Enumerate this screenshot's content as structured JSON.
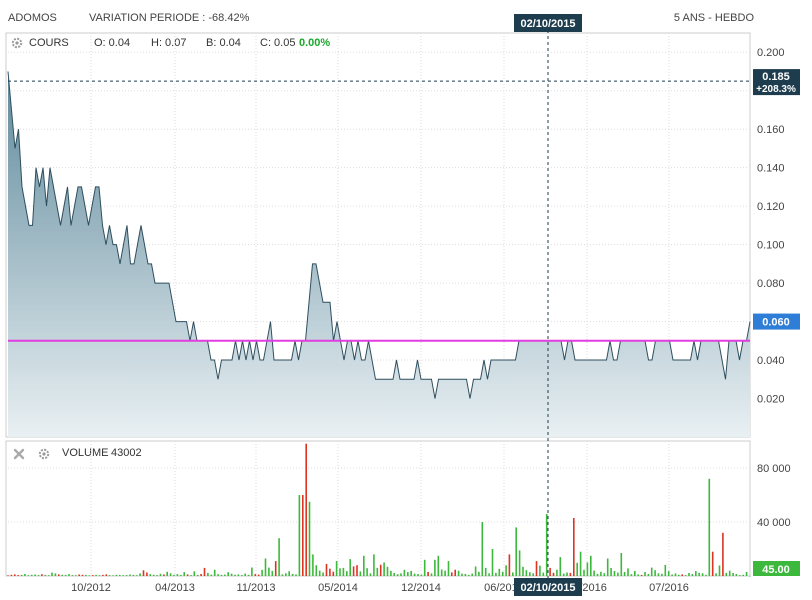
{
  "header": {
    "symbol": "ADOMOS",
    "variation": "VARIATION PERIODE : -68.42%",
    "period": "5 ANS - HEBDO",
    "crosshair_date": "02/10/2015"
  },
  "price_panel": {
    "label": "COURS",
    "open": "O: 0.04",
    "high": "H: 0.07",
    "low": "B: 0.04",
    "close": "C: 0.05",
    "change": "0.00%",
    "crosshair_price": "0.185",
    "crosshair_change": "+208.3%",
    "last_price": "0.060"
  },
  "volume_panel": {
    "label": "VOLUME",
    "value": "43002",
    "last_volume": "45.00"
  },
  "colors": {
    "line": "#2f4f5f",
    "area_top": "#5f8a9c",
    "area_bottom": "#e9f0f3",
    "reference": "#e23de0",
    "up": "#3cb83c",
    "down": "#dd3322",
    "tag_bg": "#1d3d4e",
    "last_tag": "#2e7dd6",
    "volume_tag": "#3cb83c",
    "grid": "#dddddd"
  },
  "chart_data": [
    {
      "type": "area",
      "title": "ADOMOS",
      "ylim": [
        0.0,
        0.21
      ],
      "y_ticks": [
        0.02,
        0.04,
        0.06,
        0.08,
        0.1,
        0.12,
        0.14,
        0.16,
        0.18,
        0.2
      ],
      "y_tick_labels": [
        "0.020",
        "0.040",
        "0.060",
        "0.080",
        "0.100",
        "0.120",
        "0.140",
        "0.160",
        "0.180",
        "0.200"
      ],
      "x_tick_labels": [
        "10/2012",
        "04/2013",
        "11/2013",
        "05/2014",
        "12/2014",
        "06/2015",
        "01/2016",
        "07/2016"
      ],
      "reference_line": 0.05,
      "grid": true,
      "series": [
        {
          "name": "COURS",
          "values": [
            0.19,
            0.17,
            0.15,
            0.16,
            0.13,
            0.12,
            0.11,
            0.11,
            0.14,
            0.13,
            0.14,
            0.12,
            0.14,
            0.13,
            0.12,
            0.11,
            0.12,
            0.13,
            0.11,
            0.12,
            0.13,
            0.13,
            0.12,
            0.11,
            0.12,
            0.13,
            0.13,
            0.11,
            0.1,
            0.11,
            0.1,
            0.1,
            0.09,
            0.1,
            0.11,
            0.09,
            0.09,
            0.1,
            0.11,
            0.1,
            0.09,
            0.09,
            0.08,
            0.08,
            0.08,
            0.08,
            0.08,
            0.07,
            0.06,
            0.06,
            0.06,
            0.06,
            0.05,
            0.06,
            0.05,
            0.05,
            0.05,
            0.05,
            0.04,
            0.04,
            0.03,
            0.04,
            0.04,
            0.04,
            0.04,
            0.05,
            0.04,
            0.05,
            0.04,
            0.05,
            0.04,
            0.05,
            0.04,
            0.04,
            0.05,
            0.06,
            0.04,
            0.04,
            0.04,
            0.04,
            0.04,
            0.04,
            0.05,
            0.04,
            0.05,
            0.05,
            0.07,
            0.09,
            0.09,
            0.08,
            0.07,
            0.07,
            0.07,
            0.05,
            0.06,
            0.05,
            0.04,
            0.05,
            0.05,
            0.04,
            0.05,
            0.04,
            0.04,
            0.05,
            0.04,
            0.03,
            0.03,
            0.03,
            0.03,
            0.03,
            0.03,
            0.04,
            0.03,
            0.03,
            0.03,
            0.03,
            0.03,
            0.04,
            0.03,
            0.03,
            0.03,
            0.03,
            0.02,
            0.03,
            0.03,
            0.03,
            0.03,
            0.03,
            0.03,
            0.03,
            0.03,
            0.03,
            0.02,
            0.03,
            0.03,
            0.03,
            0.04,
            0.03,
            0.04,
            0.04,
            0.04,
            0.04,
            0.04,
            0.04,
            0.04,
            0.04,
            0.05,
            0.05,
            0.05,
            0.05,
            0.05,
            0.05,
            0.05,
            0.05,
            0.05,
            0.05,
            0.05,
            0.05,
            0.05,
            0.04,
            0.05,
            0.05,
            0.04,
            0.04,
            0.04,
            0.04,
            0.04,
            0.04,
            0.04,
            0.04,
            0.04,
            0.04,
            0.05,
            0.04,
            0.04,
            0.05,
            0.05,
            0.05,
            0.05,
            0.05,
            0.05,
            0.05,
            0.05,
            0.04,
            0.04,
            0.05,
            0.05,
            0.05,
            0.05,
            0.05,
            0.04,
            0.04,
            0.04,
            0.04,
            0.04,
            0.04,
            0.05,
            0.04,
            0.05,
            0.05,
            0.05,
            0.05,
            0.05,
            0.05,
            0.04,
            0.03,
            0.05,
            0.05,
            0.05,
            0.04,
            0.05,
            0.05,
            0.06
          ]
        }
      ]
    },
    {
      "type": "bar",
      "title": "VOLUME",
      "ylim": [
        0,
        100000
      ],
      "y_ticks": [
        40000,
        80000
      ],
      "y_tick_labels": [
        "40 000",
        "80 000"
      ],
      "series": [
        {
          "name": "VOLUME",
          "values": [
            500,
            900,
            1200,
            700,
            800,
            1500,
            600,
            900,
            1100,
            700,
            1300,
            800,
            600,
            2500,
            1900,
            1200,
            900,
            800,
            1400,
            700,
            600,
            1100,
            900,
            800,
            500,
            700,
            900,
            600,
            800,
            1200,
            700,
            500,
            900,
            800,
            600,
            700,
            1100,
            800,
            600,
            1900,
            4200,
            2600,
            1400,
            900,
            700,
            1600,
            1100,
            3100,
            2000,
            900,
            1400,
            800,
            2900,
            1200,
            700,
            3400,
            800,
            1500,
            6000,
            2300,
            1000,
            4700,
            1300,
            800,
            1000,
            2800,
            1700,
            900,
            1200,
            700,
            1800,
            900,
            6300,
            1400,
            1000,
            4500,
            13000,
            6200,
            3800,
            11000,
            28000,
            1200,
            2000,
            3500,
            1500,
            1200,
            60000,
            60000,
            98000,
            55000,
            16000,
            8000,
            4000,
            2600,
            9000,
            5400,
            3200,
            11000,
            5700,
            6000,
            3600,
            12500,
            7100,
            8000,
            3400,
            15000,
            5800,
            1900,
            16000,
            6000,
            8400,
            10000,
            6800,
            3800,
            2200,
            1300,
            1900,
            4600,
            2900,
            3800,
            1800,
            1500,
            1000,
            12000,
            3000,
            1900,
            12000,
            15000,
            4800,
            3900,
            11000,
            2700,
            4700,
            3900,
            1800,
            1500,
            800,
            1800,
            7000,
            3100,
            40000,
            6000,
            2000,
            20000,
            2400,
            5300,
            3200,
            7900,
            16000,
            2700,
            36000,
            19000,
            6800,
            4400,
            2800,
            2000,
            11000,
            7600,
            2500,
            46000,
            6000,
            2400,
            4600,
            14000,
            1800,
            2600,
            2300,
            43000,
            9800,
            18000,
            4600,
            10000,
            15000,
            4000,
            1500,
            3100,
            2100,
            13000,
            5900,
            3700,
            2500,
            17000,
            3000,
            5600,
            1300,
            3800,
            1200,
            800,
            3000,
            1500,
            6200,
            4300,
            2000,
            1600,
            8200,
            3600,
            1100,
            1900,
            900,
            1200,
            700,
            2200,
            1500,
            3600,
            2400,
            2100,
            800,
            72000,
            18000,
            2000,
            7800,
            32000,
            2300,
            3900,
            2200,
            1500,
            700,
            900,
            3000,
            45
          ]
        }
      ],
      "colors_by_bar": "dddduuuuuuduuuuduuuuudduuduudduuuuuuuuuudduuuuduuuuuuduuudduuuuuuuuuuuuuudduuuuduuuuuuudduuuuuddduuuuudduuuuuuduuuuuuuuuuuuuduuuuuudduuuuuuuuuuuuuuuduuuuuuuduuudduuuudduuuuuuuuuuuuuuuuuuuduuuuuuuuuuuduuuuuuuuduuduuuuuuuuudddduuuu"
    }
  ]
}
